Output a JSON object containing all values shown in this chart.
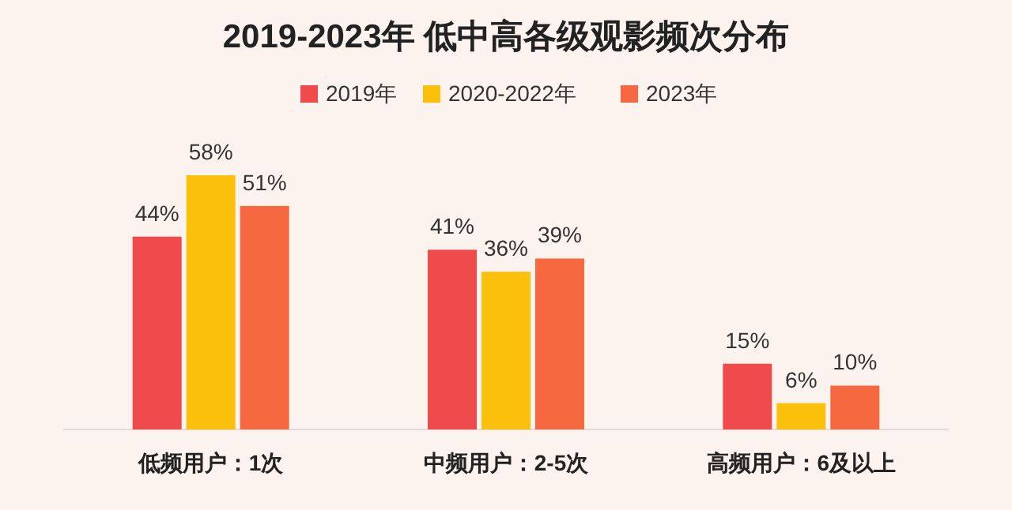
{
  "chart_data": {
    "type": "bar",
    "title": "2019-2023年 低中高各级观影频次分布",
    "categories": [
      "低频用户：1次",
      "中频用户：2-5次",
      "高频用户：6及以上"
    ],
    "series": [
      {
        "name": "2019年",
        "color": "#f04b4c",
        "values": [
          44,
          41,
          15
        ],
        "value_labels": [
          "44%",
          "41%",
          "15%"
        ]
      },
      {
        "name": "2020-2022年",
        "color": "#fbc00c",
        "values": [
          58,
          36,
          6
        ],
        "value_labels": [
          "58%",
          "36%",
          "6%"
        ]
      },
      {
        "name": "2023年",
        "color": "#f6683f",
        "values": [
          51,
          39,
          10
        ],
        "value_labels": [
          "51%",
          "39%",
          "10%"
        ]
      }
    ],
    "legend": "top"
  }
}
